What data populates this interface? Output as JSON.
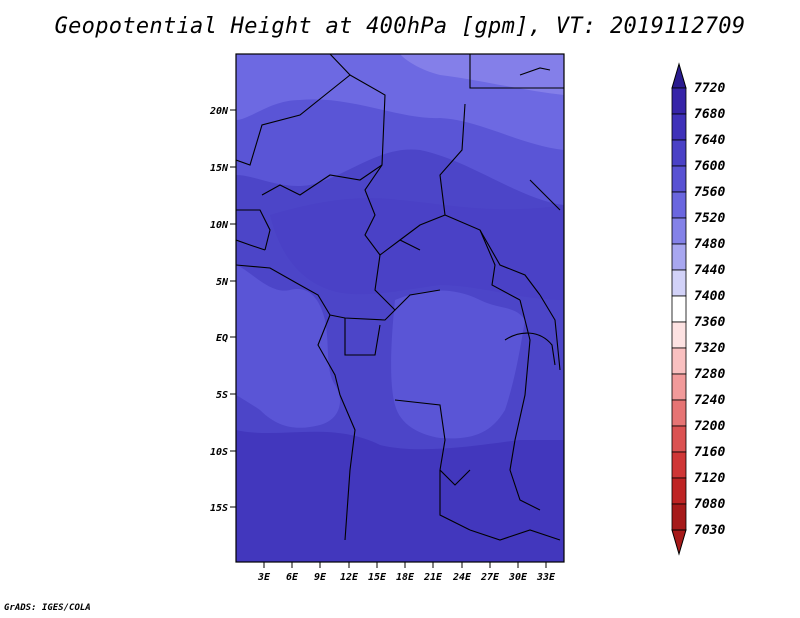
{
  "title": "Geopotential Height at 400hPa [gpm], VT: 2019112709",
  "credit": "GrADS: IGES/COLA",
  "map": {
    "lat_labels": [
      "20N",
      "15N",
      "10N",
      "5N",
      "EQ",
      "5S",
      "10S",
      "15S"
    ],
    "lon_labels": [
      "3E",
      "6E",
      "9E",
      "12E",
      "15E",
      "18E",
      "21E",
      "24E",
      "27E",
      "30E",
      "33E"
    ],
    "fill_colors": {
      "base": "#4c45c8",
      "dark": "#4237bd",
      "mid": "#5a55d6",
      "light": "#6d69e2",
      "lighter": "#847fe9"
    }
  },
  "colorbar": {
    "labels": [
      "7720",
      "7680",
      "7640",
      "7600",
      "7560",
      "7520",
      "7480",
      "7440",
      "7400",
      "7360",
      "7320",
      "7280",
      "7240",
      "7200",
      "7160",
      "7120",
      "7080",
      "7030"
    ],
    "colors": [
      "#2a1b8f",
      "#3624a8",
      "#3f31b9",
      "#4a41c6",
      "#5952d3",
      "#6a66df",
      "#8482e8",
      "#a8a7f0",
      "#d2d2f8",
      "#ffffff",
      "#fde2e2",
      "#f9c0c0",
      "#f19a9a",
      "#e67474",
      "#db5252",
      "#cf3636",
      "#be2424",
      "#a61a1a"
    ]
  }
}
